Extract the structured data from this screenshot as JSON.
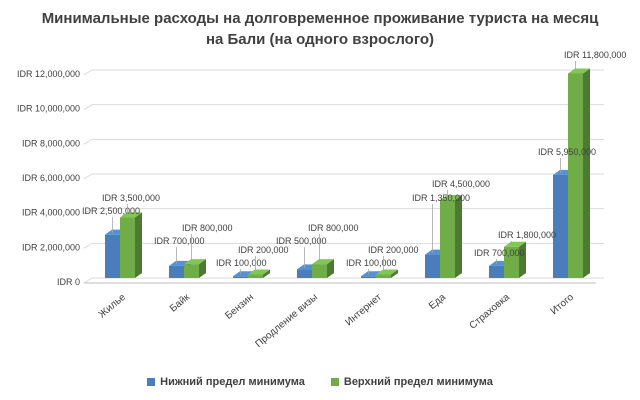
{
  "chart_data": {
    "type": "bar",
    "title": "Минимальные расходы на долговременное проживание туриста на месяц на Бали (на одного взрослого)",
    "categories": [
      "Жилье",
      "Байк",
      "Бензин",
      "Продление визы",
      "Интернет",
      "Еда",
      "Страховка",
      "Итого"
    ],
    "series": [
      {
        "name": "Нижний предел минимума",
        "color": "#4a7ebb",
        "values": [
          2500000,
          700000,
          100000,
          500000,
          100000,
          1350000,
          700000,
          5950000
        ],
        "labels": [
          "IDR 2,500,000",
          "IDR 700,000",
          "IDR 100,000",
          "IDR 500,000",
          "IDR 100,000",
          "IDR 1,350,000",
          "IDR 700,000",
          "IDR 5,950,000"
        ]
      },
      {
        "name": "Верхний предел минимума",
        "color": "#70ad47",
        "values": [
          3500000,
          800000,
          200000,
          800000,
          200000,
          4500000,
          1800000,
          11800000
        ],
        "labels": [
          "IDR 3,500,000",
          "IDR 800,000",
          "IDR 200,000",
          "IDR 800,000",
          "IDR 200,000",
          "IDR 4,500,000",
          "IDR 1,800,000",
          "IDR 11,800,000"
        ]
      }
    ],
    "ylim": [
      0,
      12000000
    ],
    "yticks": [
      0,
      2000000,
      4000000,
      6000000,
      8000000,
      10000000,
      12000000
    ],
    "ytick_labels": [
      "IDR 0",
      "IDR 2,000,000",
      "IDR 4,000,000",
      "IDR 6,000,000",
      "IDR 8,000,000",
      "IDR 10,000,000",
      "IDR 12,000,000"
    ],
    "grid": true,
    "legend_position": "bottom",
    "style": "3d-clustered-column"
  }
}
